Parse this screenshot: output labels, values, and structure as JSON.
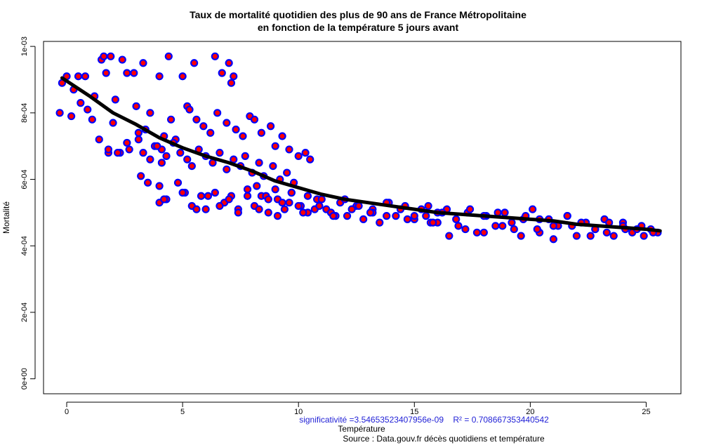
{
  "chart_data": {
    "type": "scatter",
    "title": "Taux de mortalité quotidien des plus de 90 ans de France Métropolitaine",
    "subtitle": "en fonction de la température 5 jours avant",
    "xlabel": "Température",
    "ylabel": "Mortalité",
    "xlim": [
      -1,
      26.5
    ],
    "ylim": [
      -4.5e-05,
      0.001015
    ],
    "x_ticks": [
      0,
      5,
      10,
      15,
      20,
      25
    ],
    "x_tick_labels": [
      "0",
      "5",
      "10",
      "15",
      "20",
      "25"
    ],
    "y_ticks": [
      0,
      0.0002,
      0.0004,
      0.0006,
      0.0008,
      0.001
    ],
    "y_tick_labels": [
      "0e+00",
      "2e-04",
      "4e-04",
      "6e-04",
      "8e-04",
      "1e-03"
    ],
    "grid": false,
    "annotations": [
      "significativité =3.54653523407956e-09    R² = 0.708667353440542",
      "Source : Data.gouv.fr décès quotidiens et température"
    ],
    "colors": {
      "point_fill": "#ff0000",
      "point_stroke": "#0000ff",
      "trend": "#000000",
      "annotation": "#1f1fd6"
    },
    "series": [
      {
        "type": "scatter",
        "x": [
          -0.2,
          0.0,
          0.3,
          0.5,
          0.8,
          1.2,
          1.5,
          1.6,
          1.7,
          1.9,
          2.0,
          2.4,
          2.6,
          2.9,
          3.1,
          3.3,
          4.0,
          4.2,
          4.4,
          5.0,
          5.2,
          5.5,
          6.4,
          6.7,
          7.0,
          7.1,
          7.2,
          -0.3,
          0.2,
          0.6,
          0.9,
          1.1,
          1.4,
          1.8,
          2.1,
          2.3,
          2.7,
          3.0,
          3.4,
          3.6,
          3.8,
          4.1,
          4.5,
          4.7,
          5.3,
          5.6,
          5.9,
          6.2,
          6.5,
          6.9,
          7.3,
          7.6,
          7.9,
          8.1,
          8.4,
          8.8,
          9.0,
          9.3,
          9.6,
          10.0,
          10.3,
          10.5,
          1.8,
          2.2,
          2.6,
          3.1,
          3.3,
          3.6,
          3.9,
          4.1,
          4.3,
          4.6,
          4.9,
          5.2,
          5.4,
          5.7,
          6.0,
          6.3,
          6.6,
          6.9,
          7.2,
          7.5,
          7.7,
          8.0,
          8.3,
          8.5,
          8.9,
          9.2,
          9.5,
          9.8,
          3.2,
          3.5,
          4.0,
          4.3,
          4.8,
          5.1,
          5.4,
          5.8,
          6.0,
          6.4,
          6.8,
          7.1,
          7.4,
          7.8,
          8.1,
          8.4,
          8.7,
          9.1,
          9.4,
          9.7,
          10.1,
          10.4,
          10.8,
          11.2,
          11.6,
          8.2,
          8.6,
          9.0,
          9.3,
          9.7,
          10.0,
          10.4,
          10.7,
          11.0,
          11.4,
          11.8,
          12.1,
          12.5,
          12.8,
          13.2,
          13.5,
          13.9,
          14.2,
          14.6,
          15.0,
          15.3,
          15.7,
          16.0,
          15.5,
          16.0,
          16.4,
          16.9,
          17.3,
          17.7,
          18.1,
          18.5,
          18.9,
          19.3,
          19.7,
          20.1,
          20.4,
          20.8,
          21.2,
          21.6,
          22.0,
          22.4,
          22.8,
          23.2,
          23.6,
          24.0,
          24.4,
          24.8,
          25.2,
          25.5,
          12.0,
          12.6,
          13.2,
          13.8,
          14.4,
          15.0,
          15.6,
          16.2,
          16.8,
          17.4,
          18.0,
          18.6,
          19.2,
          19.8,
          20.4,
          21.0,
          21.6,
          22.2,
          22.8,
          23.4,
          24.0,
          24.6,
          25.3,
          16.5,
          17.2,
          18.0,
          18.8,
          19.6,
          20.3,
          21.0,
          21.8,
          22.6,
          23.3,
          24.1,
          24.9,
          4.0,
          4.2,
          5.0,
          5.6,
          6.1,
          6.6,
          7.0,
          7.4,
          7.8,
          8.3,
          8.7,
          9.1,
          9.6,
          10.2,
          10.9,
          11.5,
          12.3,
          13.1,
          13.8,
          14.7,
          15.8
        ],
        "y": [
          0.00089,
          0.00091,
          0.00087,
          0.00091,
          0.00091,
          0.00085,
          0.00096,
          0.00097,
          0.00092,
          0.00097,
          0.00077,
          0.00096,
          0.00092,
          0.00092,
          0.00074,
          0.00095,
          0.00091,
          0.00073,
          0.00097,
          0.00091,
          0.00082,
          0.00095,
          0.00097,
          0.00092,
          0.00095,
          0.00089,
          0.00091,
          0.0008,
          0.00079,
          0.00083,
          0.00081,
          0.00078,
          0.00072,
          0.00068,
          0.00084,
          0.00068,
          0.00069,
          0.00082,
          0.00075,
          0.0008,
          0.0007,
          0.00069,
          0.00078,
          0.00072,
          0.00081,
          0.00078,
          0.00076,
          0.00074,
          0.0008,
          0.00077,
          0.00075,
          0.00073,
          0.00079,
          0.00078,
          0.00074,
          0.00076,
          0.0007,
          0.00073,
          0.00069,
          0.00067,
          0.00068,
          0.00066,
          0.00069,
          0.00068,
          0.00071,
          0.00072,
          0.00068,
          0.00066,
          0.0007,
          0.00065,
          0.00067,
          0.00071,
          0.00068,
          0.00066,
          0.00064,
          0.00069,
          0.00067,
          0.00065,
          0.00068,
          0.00063,
          0.00066,
          0.00064,
          0.00067,
          0.00062,
          0.00065,
          0.00061,
          0.00064,
          0.0006,
          0.00062,
          0.00059,
          0.00061,
          0.00059,
          0.00058,
          0.00054,
          0.00059,
          0.00056,
          0.00052,
          0.00055,
          0.00051,
          0.00056,
          0.00053,
          0.00055,
          0.00051,
          0.00057,
          0.00052,
          0.00055,
          0.0005,
          0.00054,
          0.00051,
          0.00056,
          0.00052,
          0.0005,
          0.00054,
          0.00051,
          0.00049,
          0.00058,
          0.00055,
          0.00057,
          0.00053,
          0.00056,
          0.00052,
          0.00055,
          0.00051,
          0.00054,
          0.0005,
          0.00053,
          0.00049,
          0.00052,
          0.00048,
          0.00051,
          0.00047,
          0.00053,
          0.00049,
          0.00052,
          0.00048,
          0.00051,
          0.00047,
          0.0005,
          0.00049,
          0.00047,
          0.00051,
          0.00046,
          0.0005,
          0.00044,
          0.00049,
          0.00046,
          0.0005,
          0.00045,
          0.00048,
          0.00051,
          0.00044,
          0.00048,
          0.00046,
          0.00049,
          0.00043,
          0.00047,
          0.00045,
          0.00048,
          0.00043,
          0.00047,
          0.00044,
          0.00046,
          0.00045,
          0.00044,
          0.00054,
          0.00052,
          0.0005,
          0.00053,
          0.00051,
          0.00049,
          0.00052,
          0.0005,
          0.00048,
          0.00051,
          0.00049,
          0.0005,
          0.00047,
          0.00049,
          0.00048,
          0.00046,
          0.00049,
          0.00047,
          0.00045,
          0.00047,
          0.00046,
          0.00045,
          0.00044,
          0.00043,
          0.00045,
          0.00044,
          0.00046,
          0.00043,
          0.00045,
          0.00042,
          0.00046,
          0.00043,
          0.00044,
          0.00045,
          0.00043,
          0.00053,
          0.00054,
          0.00056,
          0.00051,
          0.00055,
          0.00052,
          0.00054,
          0.0005,
          0.00055,
          0.00051,
          0.00054,
          0.00049,
          0.00053,
          0.0005,
          0.00052,
          0.00049,
          0.00051,
          0.0005,
          0.00049,
          0.00048,
          0.00047
        ]
      },
      {
        "type": "line",
        "x": [
          -0.2,
          1,
          2,
          3,
          4,
          5,
          6,
          7,
          8,
          9,
          10,
          11,
          12,
          13,
          14,
          15,
          16,
          17,
          18,
          19,
          20,
          21,
          22,
          23,
          24,
          25,
          25.6
        ],
        "y": [
          0.000905,
          0.00085,
          0.0008,
          0.000765,
          0.000725,
          0.000695,
          0.00067,
          0.00065,
          0.000625,
          0.000595,
          0.000575,
          0.000555,
          0.00054,
          0.00053,
          0.00052,
          0.00051,
          0.0005,
          0.000495,
          0.00049,
          0.000485,
          0.00048,
          0.000475,
          0.000465,
          0.00046,
          0.000455,
          0.00045,
          0.000445
        ]
      }
    ]
  }
}
